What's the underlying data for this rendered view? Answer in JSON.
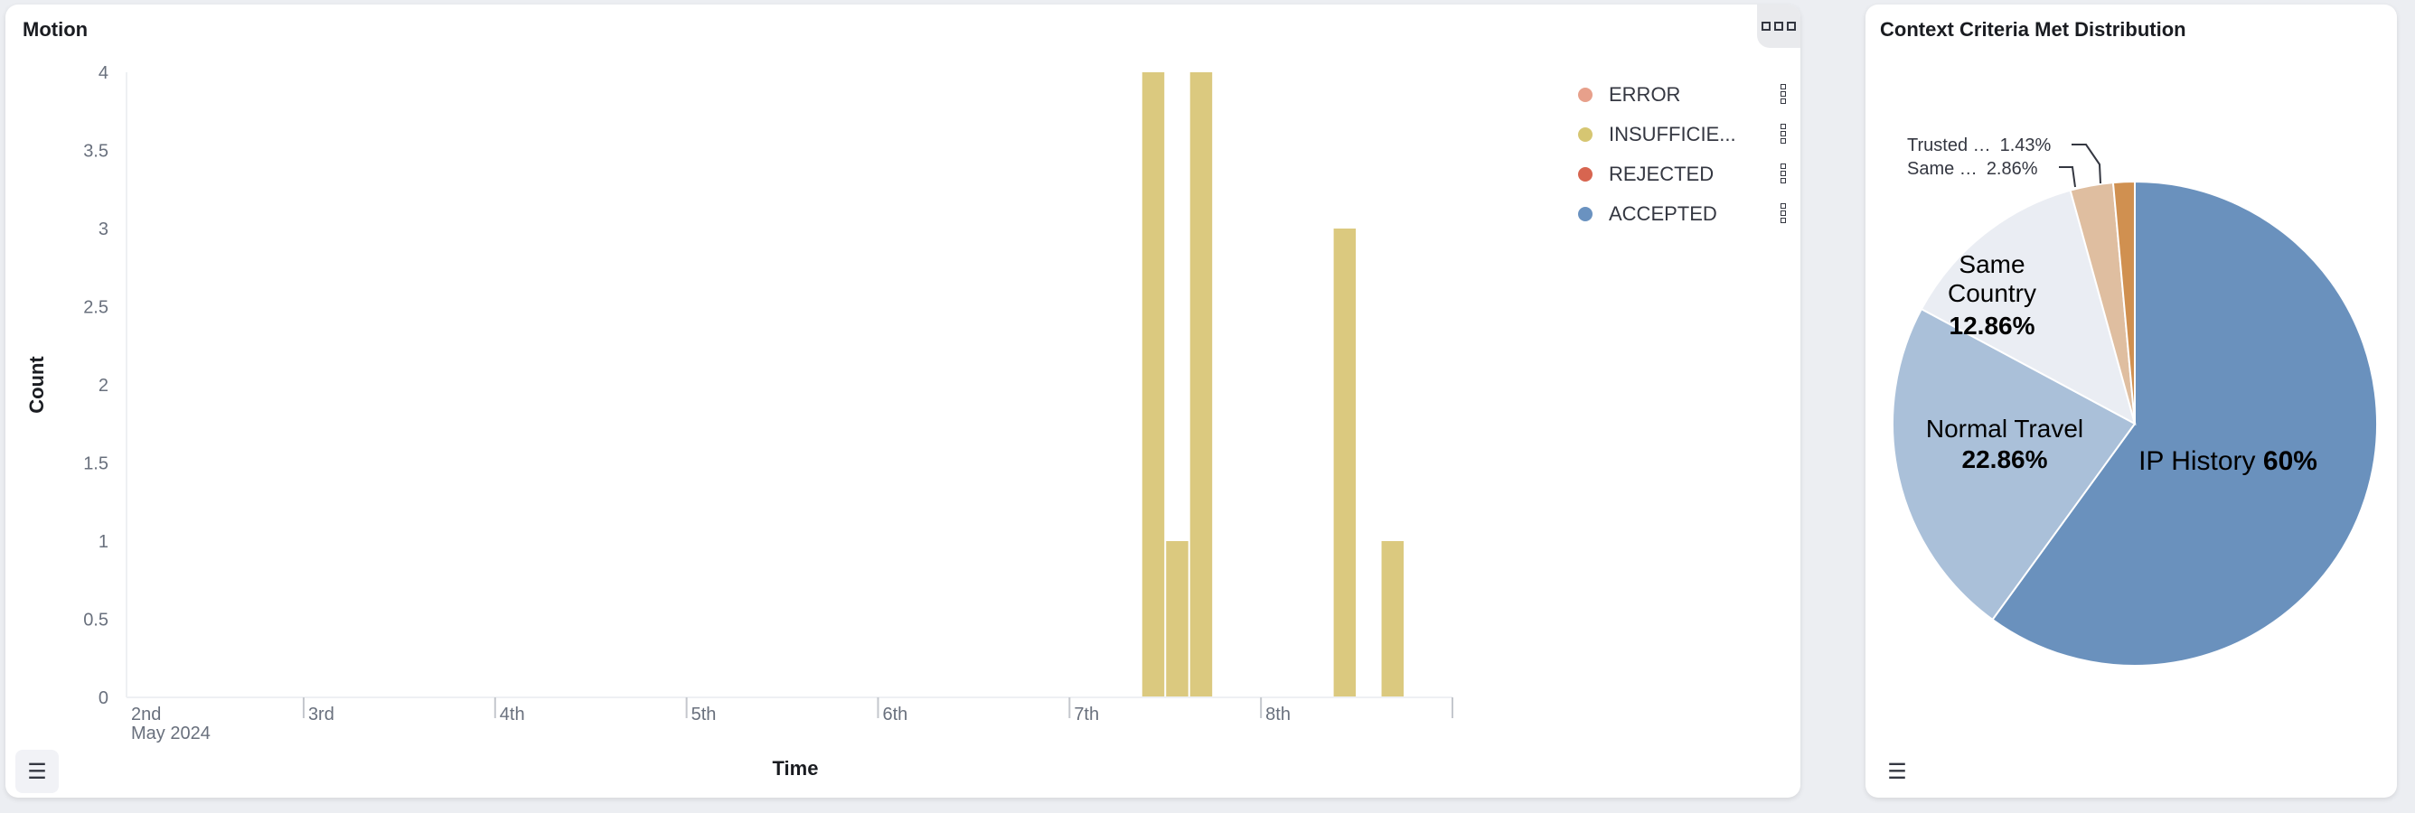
{
  "motion_panel": {
    "title": "Motion",
    "options_icon": "dots-horizontal-icon",
    "legend_toggle_icon": "list-icon",
    "legend": [
      {
        "label": "ERROR",
        "color": "#e7a08b"
      },
      {
        "label": "INSUFFICIE...",
        "color": "#d6c672"
      },
      {
        "label": "REJECTED",
        "color": "#d76550"
      },
      {
        "label": "ACCEPTED",
        "color": "#6a92c0"
      }
    ]
  },
  "pie_panel": {
    "title": "Context Criteria Met Distribution",
    "legend_toggle_icon": "list-icon"
  },
  "chart_data": [
    {
      "type": "bar",
      "title": "Motion",
      "xlabel": "Time",
      "ylabel": "Count",
      "ylim": [
        0,
        4
      ],
      "yticks": [
        "0",
        "0.5",
        "1",
        "1.5",
        "2",
        "2.5",
        "3",
        "3.5",
        "4"
      ],
      "xlim": [
        "2024-05-02T01:48",
        "2024-05-09T00:00"
      ],
      "xticks": [
        {
          "date": "2024-05-02",
          "label": "2nd",
          "sublabel": "May 2024"
        },
        {
          "date": "2024-05-03",
          "label": "3rd"
        },
        {
          "date": "2024-05-04",
          "label": "4th"
        },
        {
          "date": "2024-05-05",
          "label": "5th"
        },
        {
          "date": "2024-05-06",
          "label": "6th"
        },
        {
          "date": "2024-05-07",
          "label": "7th"
        },
        {
          "date": "2024-05-08",
          "label": "8th"
        },
        {
          "date": "2024-05-09",
          "label": ""
        }
      ],
      "interval_hours": 3,
      "grid": false,
      "legend_position": "right",
      "series": [
        {
          "name": "INSUFFICIE...",
          "color": "#dbc97f",
          "points": [
            {
              "x": "2024-05-07T09:00",
              "y": 4
            },
            {
              "x": "2024-05-07T12:00",
              "y": 1
            },
            {
              "x": "2024-05-07T15:00",
              "y": 4
            },
            {
              "x": "2024-05-08T09:00",
              "y": 3
            },
            {
              "x": "2024-05-08T15:00",
              "y": 1
            }
          ]
        }
      ]
    },
    {
      "type": "pie",
      "title": "Context Criteria Met Distribution",
      "slices": [
        {
          "label": "IP History",
          "value_label": "60%",
          "value": 60,
          "color": "#6a91bd",
          "label_pos": "inside"
        },
        {
          "label": "Normal Travel",
          "value_label": "22.86%",
          "value": 22.86,
          "color": "#aac0d9",
          "label_pos": "inside"
        },
        {
          "label": "Same Country",
          "value_label": "12.86%",
          "value": 12.86,
          "color": "#eaedf3",
          "label_pos": "inside"
        },
        {
          "label": "Same …",
          "value_label": "2.86%",
          "value": 2.86,
          "color": "#dfbea0",
          "label_pos": "outside"
        },
        {
          "label": "Trusted …",
          "value_label": "1.43%",
          "value": 1.43,
          "color": "#d09050",
          "label_pos": "outside"
        }
      ]
    }
  ]
}
